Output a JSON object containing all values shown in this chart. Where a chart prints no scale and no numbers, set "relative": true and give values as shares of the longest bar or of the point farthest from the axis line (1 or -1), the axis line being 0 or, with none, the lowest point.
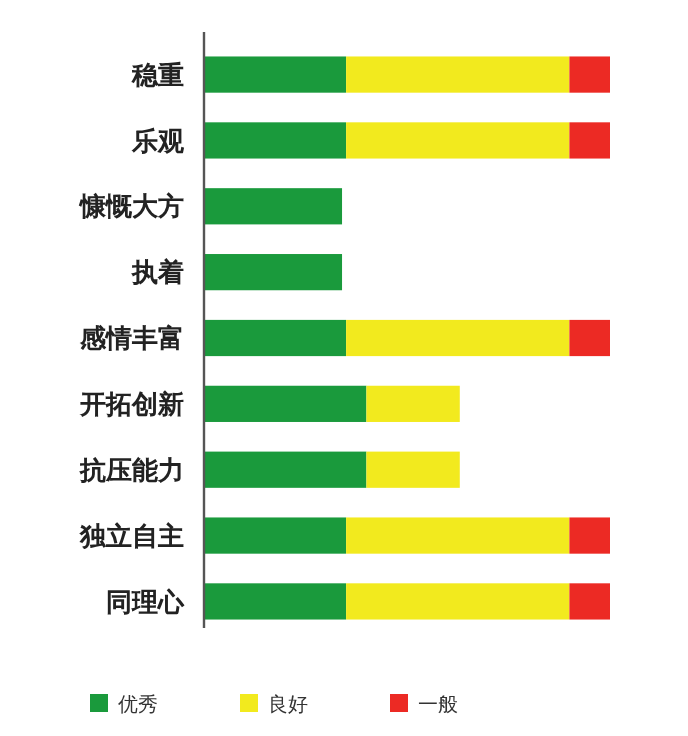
{
  "chart_data": {
    "type": "bar",
    "orientation": "horizontal",
    "stacked": true,
    "relative": true,
    "legend": "bottom",
    "categories": [
      "稳重",
      "乐观",
      "慷慨大方",
      "执着",
      "感情丰富",
      "开拓创新",
      "抗压能力",
      "独立自主",
      "同理心"
    ],
    "series": [
      {
        "name": "优秀",
        "color": "#1a9a3c",
        "values": [
          0.35,
          0.35,
          0.34,
          0.34,
          0.35,
          0.4,
          0.4,
          0.35,
          0.35
        ]
      },
      {
        "name": "良好",
        "color": "#f2ea1e",
        "values": [
          0.55,
          0.55,
          0,
          0,
          0.55,
          0.23,
          0.23,
          0.55,
          0.55
        ]
      },
      {
        "name": "一般",
        "color": "#ec2a24",
        "values": [
          0.1,
          0.1,
          0,
          0,
          0.1,
          0,
          0,
          0.1,
          0.1
        ]
      }
    ]
  }
}
